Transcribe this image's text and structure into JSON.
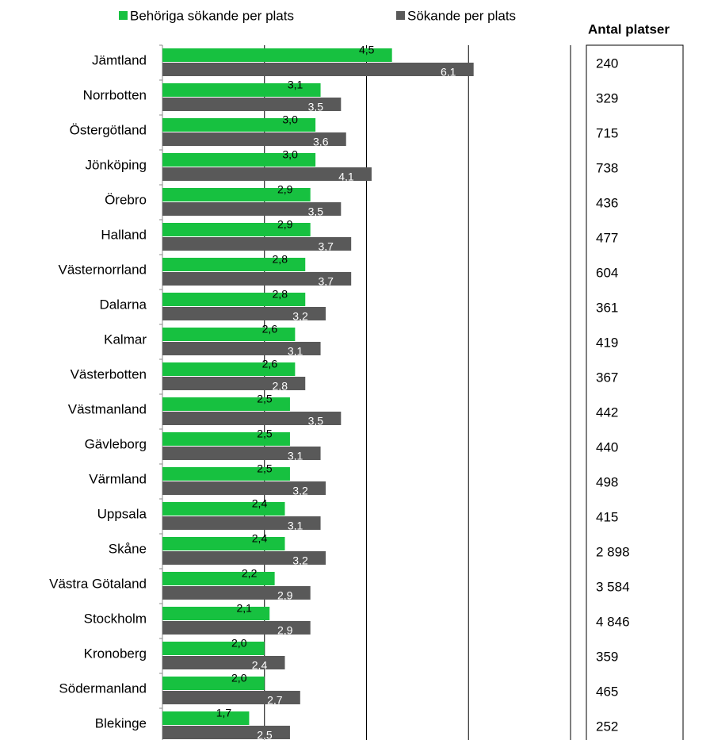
{
  "chart_data": {
    "type": "bar",
    "orientation": "horizontal",
    "categories": [
      "Jämtland",
      "Norrbotten",
      "Östergötland",
      "Jönköping",
      "Örebro",
      "Halland",
      "Västernorrland",
      "Dalarna",
      "Kalmar",
      "Västerbotten",
      "Västmanland",
      "Gävleborg",
      "Värmland",
      "Uppsala",
      "Skåne",
      "Västra Götaland",
      "Stockholm",
      "Kronoberg",
      "Södermanland",
      "Blekinge"
    ],
    "series": [
      {
        "name": "Behöriga sökande per plats",
        "color": "#17c140",
        "values": [
          4.5,
          3.1,
          3.0,
          3.0,
          2.9,
          2.9,
          2.8,
          2.8,
          2.6,
          2.6,
          2.5,
          2.5,
          2.5,
          2.4,
          2.4,
          2.2,
          2.1,
          2.0,
          2.0,
          1.7
        ],
        "value_labels": [
          "4,5",
          "3,1",
          "3,0",
          "3,0",
          "2,9",
          "2,9",
          "2,8",
          "2,8",
          "2,6",
          "2,6",
          "2,5",
          "2,5",
          "2,5",
          "2,4",
          "2,4",
          "2,2",
          "2,1",
          "2,0",
          "2,0",
          "1,7"
        ]
      },
      {
        "name": "Sökande per plats",
        "color": "#595959",
        "values": [
          6.1,
          3.5,
          3.6,
          4.1,
          3.5,
          3.7,
          3.7,
          3.2,
          3.1,
          2.8,
          3.5,
          3.1,
          3.2,
          3.1,
          3.2,
          2.9,
          2.9,
          2.4,
          2.7,
          2.5
        ],
        "value_labels": [
          "6,1",
          "3,5",
          "3,6",
          "4,1",
          "3,5",
          "3,7",
          "3,7",
          "3,2",
          "3,1",
          "2,8",
          "3,5",
          "3,1",
          "3,2",
          "3,1",
          "3,2",
          "2,9",
          "2,9",
          "2,4",
          "2,7",
          "2,5"
        ]
      }
    ],
    "xlim": [
      0,
      8
    ],
    "xticks": [
      0,
      2,
      4,
      6,
      8
    ],
    "grid": true,
    "table": {
      "header": "Antal platser",
      "rows": [
        "240",
        "329",
        "715",
        "738",
        "436",
        "477",
        "604",
        "361",
        "419",
        "367",
        "442",
        "440",
        "498",
        "415",
        "2 898",
        "3 584",
        "4 846",
        "359",
        "465",
        "252"
      ]
    }
  }
}
